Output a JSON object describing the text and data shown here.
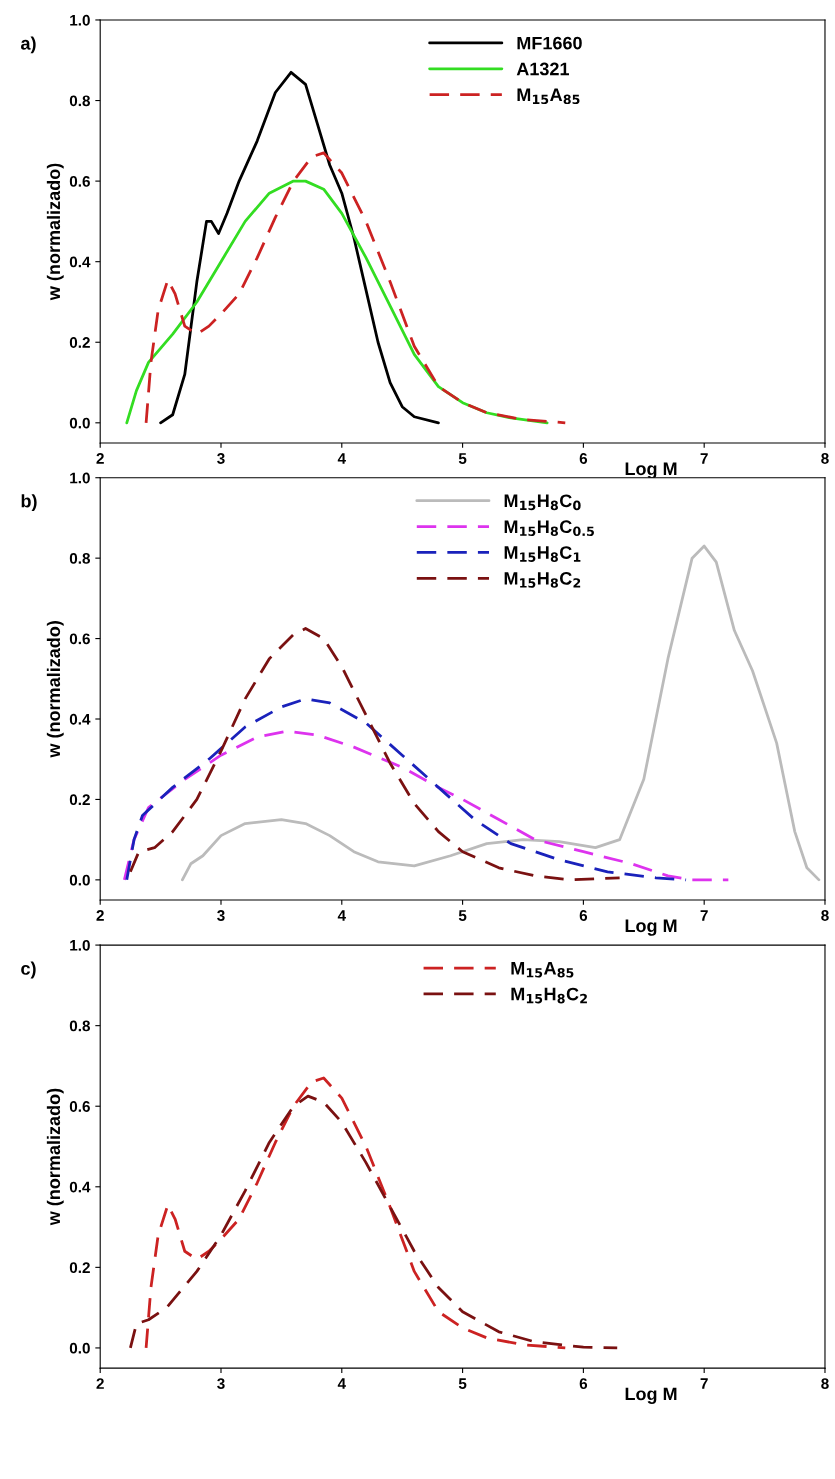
{
  "chart_data": [
    {
      "type": "line",
      "title": "a)",
      "xlabel": "Log M",
      "ylabel": "w (normalizado)",
      "xlim": [
        2,
        8
      ],
      "ylim": [
        -0.05,
        1.0
      ],
      "xticks": [
        2,
        3,
        4,
        5,
        6,
        7,
        8
      ],
      "yticks": [
        {
          "value": 0,
          "label": "0.0"
        },
        {
          "value": 0.2,
          "label": "0.2"
        },
        {
          "value": 0.4,
          "label": "0.4"
        },
        {
          "value": 0.6,
          "label": "0.6"
        },
        {
          "value": 0.8,
          "label": "0.8"
        },
        {
          "value": 1.0,
          "label": "1.0"
        }
      ],
      "grid": false,
      "legend": "top",
      "marker": "none",
      "series": [
        {
          "name": "MF1660",
          "color": "#000000",
          "line_style": "solid",
          "x": [
            2.5,
            2.6,
            2.7,
            2.8,
            2.88,
            2.92,
            2.98,
            3.05,
            3.15,
            3.3,
            3.45,
            3.58,
            3.7,
            3.8,
            3.9,
            4.0,
            4.1,
            4.2,
            4.3,
            4.4,
            4.5,
            4.6,
            4.8
          ],
          "values": [
            0,
            0.02,
            0.12,
            0.35,
            0.5,
            0.5,
            0.47,
            0.52,
            0.6,
            0.7,
            0.82,
            0.87,
            0.84,
            0.74,
            0.64,
            0.57,
            0.46,
            0.33,
            0.2,
            0.1,
            0.04,
            0.015,
            0
          ]
        },
        {
          "name": "A1321",
          "color": "#33dd22",
          "line_style": "solid",
          "x": [
            2.22,
            2.3,
            2.4,
            2.6,
            2.8,
            3.0,
            3.2,
            3.4,
            3.6,
            3.7,
            3.85,
            4.0,
            4.2,
            4.4,
            4.6,
            4.8,
            5.0,
            5.2,
            5.4,
            5.7
          ],
          "values": [
            0,
            0.08,
            0.15,
            0.22,
            0.3,
            0.4,
            0.5,
            0.57,
            0.6,
            0.6,
            0.58,
            0.52,
            0.41,
            0.29,
            0.17,
            0.09,
            0.05,
            0.025,
            0.012,
            0
          ]
        },
        {
          "name": "M$_{15}$A$_{85}$",
          "color": "#cc2222",
          "line_style": "dashed",
          "x": [
            2.38,
            2.42,
            2.48,
            2.56,
            2.62,
            2.7,
            2.8,
            2.9,
            3.0,
            3.15,
            3.3,
            3.45,
            3.6,
            3.75,
            3.85,
            4.0,
            4.2,
            4.4,
            4.6,
            4.8,
            5.0,
            5.2,
            5.5,
            5.85
          ],
          "values": [
            0,
            0.15,
            0.28,
            0.355,
            0.32,
            0.24,
            0.22,
            0.24,
            0.27,
            0.32,
            0.41,
            0.51,
            0.6,
            0.66,
            0.67,
            0.62,
            0.5,
            0.35,
            0.19,
            0.09,
            0.05,
            0.025,
            0.008,
            0
          ]
        }
      ]
    },
    {
      "type": "line",
      "title": "b)",
      "xlabel": "Log M",
      "ylabel": "w (normalizado)",
      "xlim": [
        2,
        8
      ],
      "ylim": [
        -0.05,
        1.0
      ],
      "xticks": [
        2,
        3,
        4,
        5,
        6,
        7,
        8
      ],
      "yticks": [
        {
          "value": 0,
          "label": "0.0"
        },
        {
          "value": 0.2,
          "label": "0.2"
        },
        {
          "value": 0.4,
          "label": "0.4"
        },
        {
          "value": 0.6,
          "label": "0.6"
        },
        {
          "value": 0.8,
          "label": "0.8"
        },
        {
          "value": 1.0,
          "label": "1.0"
        }
      ],
      "grid": false,
      "legend": "top",
      "marker": "none",
      "series": [
        {
          "name": "M$_{15}$H$_{8}$C$_{0}$",
          "color": "#bbbbbb",
          "line_style": "solid",
          "x": [
            2.68,
            2.75,
            2.85,
            3.0,
            3.2,
            3.5,
            3.7,
            3.9,
            4.1,
            4.3,
            4.6,
            4.9,
            5.2,
            5.5,
            5.8,
            6.1,
            6.3,
            6.5,
            6.7,
            6.9,
            7.0,
            7.1,
            7.25,
            7.4,
            7.6,
            7.75,
            7.85,
            7.95
          ],
          "values": [
            0,
            0.04,
            0.06,
            0.11,
            0.14,
            0.15,
            0.14,
            0.11,
            0.07,
            0.045,
            0.035,
            0.06,
            0.09,
            0.1,
            0.095,
            0.08,
            0.1,
            0.25,
            0.55,
            0.8,
            0.83,
            0.79,
            0.62,
            0.52,
            0.34,
            0.12,
            0.03,
            0
          ]
        },
        {
          "name": "M$_{15}$H$_{8}$C$_{0.5}$",
          "color": "#dd33ee",
          "line_style": "dashed",
          "x": [
            2.2,
            2.28,
            2.4,
            2.7,
            3.0,
            3.3,
            3.55,
            3.8,
            4.1,
            4.5,
            4.8,
            5.0,
            5.3,
            5.6,
            6.0,
            6.4,
            6.7,
            6.9,
            7.2
          ],
          "values": [
            0,
            0.1,
            0.18,
            0.25,
            0.31,
            0.355,
            0.37,
            0.36,
            0.33,
            0.28,
            0.23,
            0.2,
            0.15,
            0.1,
            0.07,
            0.04,
            0.01,
            0,
            0
          ]
        },
        {
          "name": "M$_{15}$H$_{8}$C$_{1}$",
          "color": "#1a22bb",
          "line_style": "dashed",
          "x": [
            2.22,
            2.28,
            2.35,
            2.6,
            2.9,
            3.2,
            3.5,
            3.7,
            3.9,
            4.2,
            4.5,
            4.8,
            5.1,
            5.4,
            5.8,
            6.2,
            6.6,
            6.85
          ],
          "values": [
            0,
            0.1,
            0.16,
            0.23,
            0.3,
            0.38,
            0.43,
            0.45,
            0.44,
            0.39,
            0.31,
            0.23,
            0.15,
            0.09,
            0.05,
            0.02,
            0.005,
            0
          ]
        },
        {
          "name": "M$_{15}$H$_{8}$C$_{2}$",
          "color": "#7a1111",
          "line_style": "dashed",
          "x": [
            2.25,
            2.32,
            2.45,
            2.6,
            2.8,
            3.0,
            3.2,
            3.4,
            3.6,
            3.7,
            3.85,
            4.0,
            4.2,
            4.4,
            4.6,
            4.8,
            5.0,
            5.3,
            5.6,
            5.9,
            6.3
          ],
          "values": [
            0.02,
            0.07,
            0.08,
            0.12,
            0.2,
            0.32,
            0.45,
            0.55,
            0.61,
            0.625,
            0.6,
            0.53,
            0.41,
            0.29,
            0.19,
            0.12,
            0.07,
            0.03,
            0.01,
            0,
            0.005
          ]
        }
      ]
    },
    {
      "type": "line",
      "title": "c)",
      "xlabel": "Log M",
      "ylabel": "w (normalizado)",
      "xlim": [
        2,
        8
      ],
      "ylim": [
        -0.05,
        1.0
      ],
      "xticks": [
        2,
        3,
        4,
        5,
        6,
        7,
        8
      ],
      "yticks": [
        {
          "value": 0,
          "label": "0.0"
        },
        {
          "value": 0.2,
          "label": "0.2"
        },
        {
          "value": 0.4,
          "label": "0.4"
        },
        {
          "value": 0.6,
          "label": "0.6"
        },
        {
          "value": 0.8,
          "label": "0.8"
        },
        {
          "value": 1.0,
          "label": "1.0"
        }
      ],
      "grid": false,
      "legend": "top",
      "marker": "none",
      "series": [
        {
          "name": "M$_{15}$A$_{85}$",
          "color": "#cc2222",
          "line_style": "dashed",
          "x": [
            2.38,
            2.42,
            2.48,
            2.56,
            2.62,
            2.7,
            2.8,
            2.9,
            3.0,
            3.15,
            3.3,
            3.45,
            3.6,
            3.75,
            3.85,
            4.0,
            4.2,
            4.4,
            4.6,
            4.8,
            5.0,
            5.2,
            5.5,
            5.85
          ],
          "values": [
            0,
            0.15,
            0.28,
            0.355,
            0.32,
            0.24,
            0.22,
            0.24,
            0.27,
            0.32,
            0.41,
            0.51,
            0.6,
            0.66,
            0.67,
            0.62,
            0.5,
            0.35,
            0.19,
            0.09,
            0.05,
            0.025,
            0.008,
            0
          ]
        },
        {
          "name": "M$_{15}$H$_{8}$C$_{2}$",
          "color": "#7a1111",
          "line_style": "dashed",
          "x": [
            2.25,
            2.3,
            2.4,
            2.55,
            2.8,
            3.0,
            3.2,
            3.4,
            3.6,
            3.72,
            3.85,
            4.0,
            4.2,
            4.4,
            4.6,
            4.8,
            5.0,
            5.3,
            5.6,
            6.0,
            6.28
          ],
          "values": [
            0,
            0.06,
            0.07,
            0.1,
            0.19,
            0.28,
            0.39,
            0.51,
            0.6,
            0.625,
            0.61,
            0.56,
            0.46,
            0.35,
            0.24,
            0.15,
            0.09,
            0.04,
            0.015,
            0.002,
            0
          ]
        }
      ]
    }
  ]
}
